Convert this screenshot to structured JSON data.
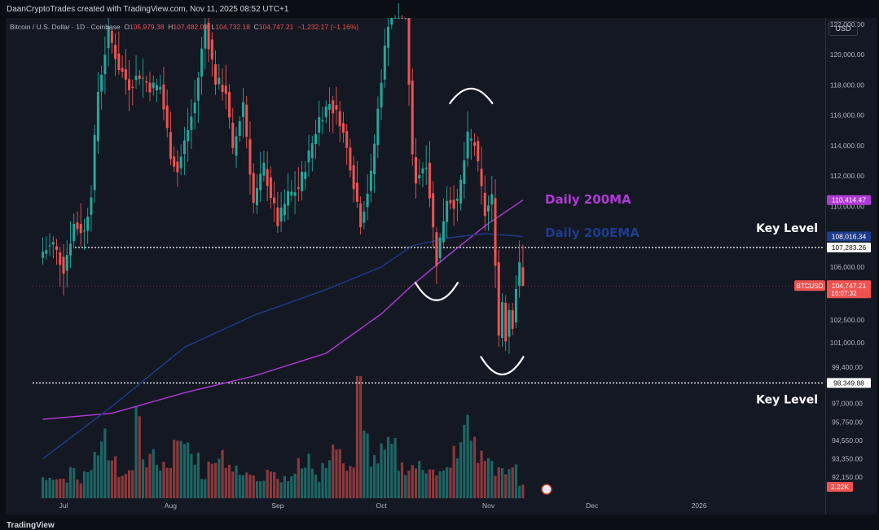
{
  "header": {
    "credit": "DaanCryptoTrades created with TradingView.com, Nov 11, 2025 08:52 UTC+1",
    "symbol": "Bitcoin / U.S. Dollar · 1D · Coinbase",
    "open_label": "O",
    "open": "105,979.38",
    "high_label": "H",
    "high": "107,482.00",
    "low_label": "L",
    "low": "104,732.18",
    "close_label": "C",
    "close": "104,747.21",
    "change": "−1,232.17 (−1.16%)",
    "currency": "USD"
  },
  "footer": {
    "logo_text": "TradingView"
  },
  "colors": {
    "background": "#141823",
    "up": "#26a69a",
    "down": "#ef5350",
    "ma": "#b03ad6",
    "ema": "#1e3c8c",
    "level_line": "#ffffff"
  },
  "chart_data": {
    "type": "candlestick",
    "timeframe": "1D",
    "x": {
      "start": "2025-06-25",
      "end": "2025-11-11",
      "tick_labels": [
        "Jul",
        "Aug",
        "Sep",
        "Oct",
        "Nov",
        "Dec",
        "2026"
      ],
      "tick_dates": [
        "2025-07-01",
        "2025-08-01",
        "2025-09-01",
        "2025-10-01",
        "2025-11-01",
        "2025-12-01",
        "2026-01-01"
      ]
    },
    "y": {
      "tick_labels": [
        "122,000.00",
        "120,000.00",
        "118,000.00",
        "116,000.00",
        "114,000.00",
        "112,000.00",
        "110,000.00",
        "106,000.00",
        "102,500.00",
        "101,000.00",
        "99,400.00",
        "97,000.00",
        "95,750.00",
        "94,550.00",
        "93,350.00",
        "92,150.00"
      ],
      "tick_values": [
        122000,
        120000,
        118000,
        116000,
        114000,
        112000,
        110000,
        106000,
        102500,
        101000,
        99400,
        97000,
        95750,
        94550,
        93350,
        92150
      ]
    },
    "price_anchors": {
      "dates": [
        "2025-06-25",
        "2025-06-28",
        "2025-07-01",
        "2025-07-04",
        "2025-07-07",
        "2025-07-09",
        "2025-07-11",
        "2025-07-14",
        "2025-07-17",
        "2025-07-20",
        "2025-07-23",
        "2025-07-26",
        "2025-07-29",
        "2025-08-01",
        "2025-08-03",
        "2025-08-05",
        "2025-08-08",
        "2025-08-11",
        "2025-08-14",
        "2025-08-17",
        "2025-08-19",
        "2025-08-22",
        "2025-08-25",
        "2025-08-28",
        "2025-09-01",
        "2025-09-04",
        "2025-09-07",
        "2025-09-10",
        "2025-09-13",
        "2025-09-16",
        "2025-09-19",
        "2025-09-22",
        "2025-09-25",
        "2025-09-28",
        "2025-10-01",
        "2025-10-03",
        "2025-10-06",
        "2025-10-08",
        "2025-10-10",
        "2025-10-11",
        "2025-10-14",
        "2025-10-16",
        "2025-10-17",
        "2025-10-20",
        "2025-10-23",
        "2025-10-26",
        "2025-10-28",
        "2025-10-31",
        "2025-11-01",
        "2025-11-02",
        "2025-11-03",
        "2025-11-04",
        "2025-11-05",
        "2025-11-06",
        "2025-11-07",
        "2025-11-08",
        "2025-11-09",
        "2025-11-10",
        "2025-11-11"
      ],
      "close": [
        107000,
        107500,
        105900,
        108800,
        108300,
        111000,
        117600,
        121500,
        119200,
        118000,
        118700,
        117900,
        117900,
        113500,
        112300,
        114200,
        116800,
        122000,
        118300,
        117600,
        113500,
        116900,
        110200,
        112600,
        108900,
        110700,
        111200,
        113400,
        115800,
        116800,
        115700,
        112800,
        109000,
        112000,
        118500,
        122200,
        124500,
        123300,
        113100,
        111800,
        113000,
        108500,
        106400,
        110600,
        110100,
        114500,
        114100,
        109500,
        110000,
        110500,
        106500,
        101500,
        103800,
        101400,
        103300,
        102300,
        104700,
        106000,
        104747
      ]
    },
    "volume": {
      "values": [
        0.9,
        1.0,
        0.8,
        1.2,
        0.7,
        1.1,
        1.7,
        2.6,
        1.5,
        1.2,
        1.0,
        4.5,
        1.5,
        1.8,
        1.4,
        1.6,
        2.2,
        2.4,
        1.8,
        1.0,
        1.4,
        2.0,
        1.6,
        1.2,
        1.0,
        1.1,
        0.9,
        1.3,
        1.1,
        0.8,
        1.0,
        1.5,
        1.6,
        0.9,
        1.6,
        2.2,
        1.8,
        1.4,
        5.1,
        2.6,
        1.7,
        2.0,
        2.2,
        1.4,
        1.3,
        1.4,
        1.2,
        1.5,
        1.1,
        1.2,
        2.1,
        3.2,
        2.6,
        1.8,
        1.6,
        1.2,
        1.1,
        1.4,
        0.6
      ],
      "label": "2.22K"
    },
    "series": [
      {
        "name": "Daily 200MA",
        "dates": [
          "2025-06-25",
          "2025-07-15",
          "2025-08-05",
          "2025-08-25",
          "2025-09-15",
          "2025-10-01",
          "2025-10-10",
          "2025-10-20",
          "2025-10-31",
          "2025-11-11"
        ],
        "values": [
          95950,
          96350,
          97700,
          98800,
          100300,
          102900,
          104800,
          106700,
          108700,
          110414
        ]
      },
      {
        "name": "Daily 200EMA",
        "dates": [
          "2025-06-25",
          "2025-07-15",
          "2025-08-05",
          "2025-08-25",
          "2025-09-15",
          "2025-10-01",
          "2025-10-10",
          "2025-10-20",
          "2025-10-31",
          "2025-11-11"
        ],
        "values": [
          93350,
          96800,
          100700,
          102800,
          104500,
          106000,
          107400,
          107900,
          108200,
          108016
        ]
      }
    ],
    "key_levels": [
      {
        "label": "Key Level",
        "value": 107283.26,
        "price_label": "107,283.26"
      },
      {
        "label": "Key Level",
        "value": 98349.88,
        "price_label": "98,349.88"
      }
    ],
    "price_tags": [
      {
        "name": "Daily 200MA",
        "text": "110,414.47",
        "value": 110414.47,
        "color": "#b03ad6"
      },
      {
        "name": "Daily 200EMA",
        "text": "108,016.34",
        "value": 108016.34,
        "color": "#1e3c8c"
      },
      {
        "name": "BTCUSD",
        "text": "104,747.21",
        "sub": "16:07:32",
        "value": 104747.21,
        "color": "#ef5350"
      }
    ],
    "arcs": [
      {
        "date": "2025-10-27",
        "price": 116800,
        "shape": "cap"
      },
      {
        "date": "2025-10-17",
        "price": 104000,
        "shape": "cup"
      },
      {
        "date": "2025-11-05",
        "price": 99100,
        "shape": "cup"
      }
    ]
  }
}
